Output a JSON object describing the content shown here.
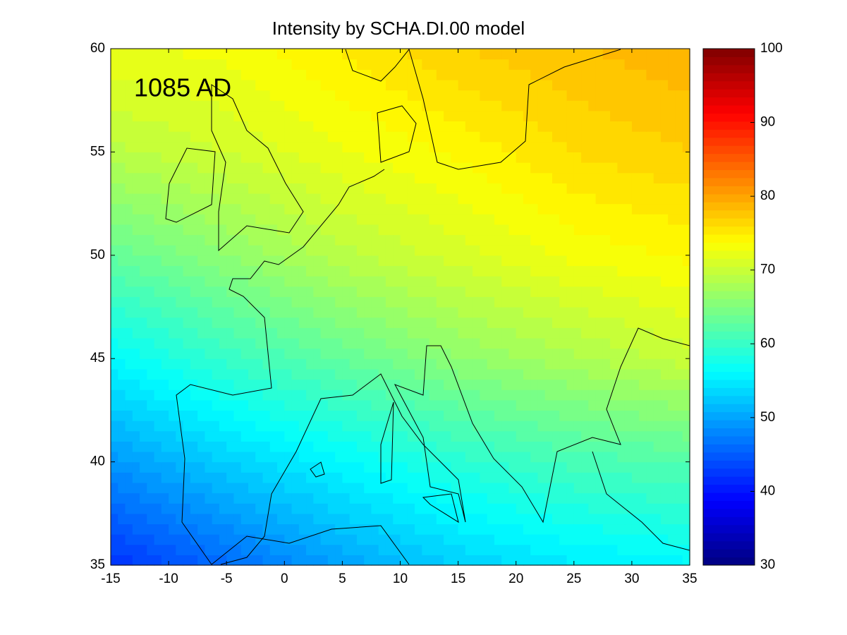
{
  "chart_data": {
    "type": "contourf",
    "title": "Intensity by SCHA.DI.00 model",
    "annotation": "1085 AD",
    "x": [
      -15,
      -5,
      5,
      15,
      25,
      35
    ],
    "y": [
      35,
      40,
      45,
      50,
      55,
      60
    ],
    "values": [
      [
        42,
        46,
        50,
        53,
        55,
        56
      ],
      [
        49,
        53,
        56,
        59,
        61,
        62
      ],
      [
        56,
        60,
        63,
        66,
        68,
        70
      ],
      [
        63,
        66,
        69,
        71,
        73,
        74
      ],
      [
        69,
        70.5,
        72.5,
        74,
        76,
        77
      ],
      [
        72.5,
        73,
        75,
        77,
        78,
        79
      ]
    ],
    "colormap": "jet",
    "xlim": [
      -15,
      35
    ],
    "xticks": [
      -15,
      -10,
      -5,
      0,
      5,
      10,
      15,
      20,
      25,
      30,
      35
    ],
    "ylim": [
      35,
      60
    ],
    "yticks": [
      35,
      40,
      45,
      50,
      55,
      60
    ],
    "clim": [
      30,
      100
    ],
    "cticks": [
      30,
      40,
      50,
      60,
      70,
      80,
      90,
      100
    ]
  }
}
